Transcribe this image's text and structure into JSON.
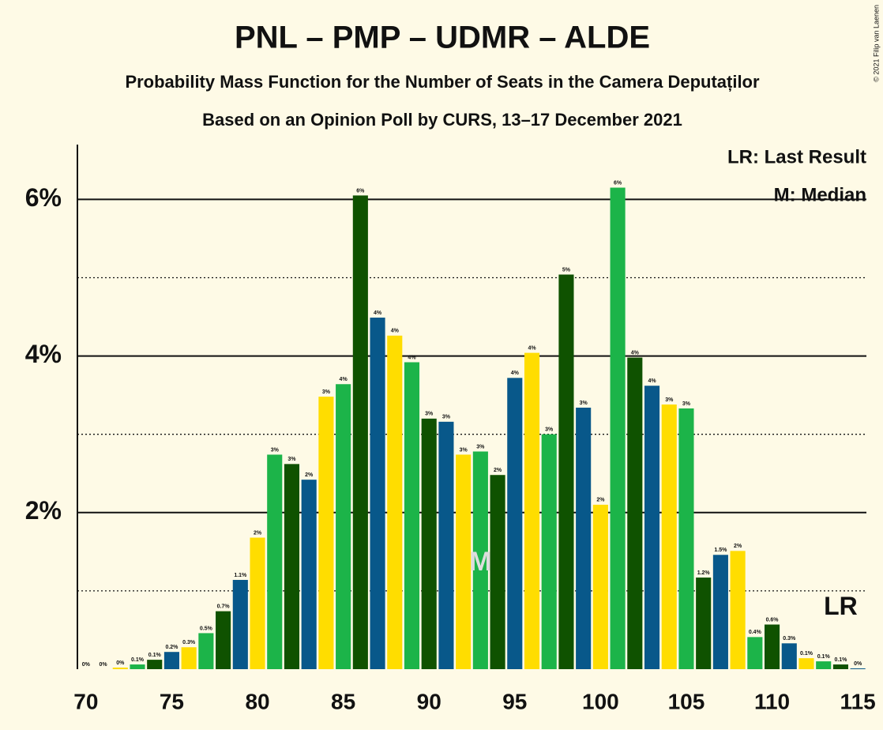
{
  "chart_data": {
    "type": "bar",
    "title": "PNL – PMP – UDMR – ALDE",
    "subtitle": "Probability Mass Function for the Number of Seats in the Camera Deputaților",
    "subtitle2": "Based on an Opinion Poll by CURS, 13–17 December 2021",
    "copyright": "© 2021 Filip van Laenen",
    "legend": [
      "LR: Last Result",
      "M: Median"
    ],
    "annotations": {
      "median_label": "M",
      "median_x": 93,
      "median_y": 1.35,
      "lr_label": "LR",
      "lr_x": 114,
      "lr_y": 0.78
    },
    "x": [
      70,
      71,
      72,
      73,
      74,
      75,
      76,
      77,
      78,
      79,
      80,
      81,
      82,
      83,
      84,
      85,
      86,
      87,
      88,
      89,
      90,
      91,
      92,
      93,
      94,
      95,
      96,
      97,
      98,
      99,
      100,
      101,
      102,
      103,
      104,
      105,
      106,
      107,
      108,
      109,
      110,
      111,
      112,
      113,
      114,
      115
    ],
    "values": [
      0,
      0,
      0.02,
      0.06,
      0.12,
      0.22,
      0.28,
      0.46,
      0.74,
      1.14,
      1.68,
      2.74,
      2.62,
      2.42,
      3.48,
      3.64,
      6.05,
      4.49,
      4.26,
      3.92,
      3.2,
      3.16,
      2.74,
      2.78,
      2.48,
      3.72,
      4.04,
      3.0,
      5.04,
      3.34,
      2.1,
      6.15,
      3.98,
      3.62,
      3.38,
      3.33,
      1.17,
      1.46,
      1.51,
      0.41,
      0.57,
      0.33,
      0.14,
      0.1,
      0.06,
      0.01
    ],
    "value_labels": [
      "0%",
      "0%",
      "0%",
      "0.1%",
      "0.1%",
      "0.2%",
      "0.3%",
      "0.5%",
      "0.7%",
      "1.1%",
      "2%",
      "3%",
      "3%",
      "2%",
      "3%",
      "4%",
      "6%",
      "4%",
      "4%",
      "4%",
      "3%",
      "3%",
      "3%",
      "3%",
      "2%",
      "4%",
      "4%",
      "3%",
      "5%",
      "3%",
      "2%",
      "6%",
      "4%",
      "4%",
      "3%",
      "3%",
      "1.2%",
      "1.5%",
      "2%",
      "0.4%",
      "0.6%",
      "0.3%",
      "0.1%",
      "0.1%",
      "0.1%",
      "0%"
    ],
    "palette": [
      "#0f5200",
      "#08588a",
      "#ffdd00",
      "#1cb449"
    ],
    "xlim": [
      69.5,
      115.5
    ],
    "xticks": [
      70,
      75,
      80,
      85,
      90,
      95,
      100,
      105,
      110,
      115
    ],
    "ylim": [
      0,
      6.7
    ],
    "yticks": [
      {
        "value": 2,
        "label": "2%"
      },
      {
        "value": 4,
        "label": "4%"
      },
      {
        "value": 6,
        "label": "6%"
      }
    ],
    "minor_yticks": [
      1,
      3,
      5
    ],
    "grid": true
  }
}
